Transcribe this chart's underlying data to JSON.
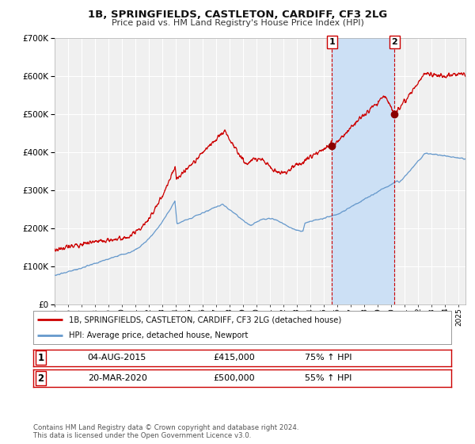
{
  "title": "1B, SPRINGFIELDS, CASTLETON, CARDIFF, CF3 2LG",
  "subtitle": "Price paid vs. HM Land Registry's House Price Index (HPI)",
  "ylim": [
    0,
    700000
  ],
  "yticks": [
    0,
    100000,
    200000,
    300000,
    400000,
    500000,
    600000,
    700000
  ],
  "xlim_start": 1995.0,
  "xlim_end": 2025.5,
  "background_color": "#ffffff",
  "plot_bg_color": "#f0f0f0",
  "grid_color": "#ffffff",
  "red_line_color": "#cc0000",
  "blue_line_color": "#6699cc",
  "shade_color": "#cce0f5",
  "vline_color": "#cc0000",
  "marker1_date": 2015.58,
  "marker1_value": 415000,
  "marker2_date": 2020.22,
  "marker2_value": 500000,
  "legend_label_red": "1B, SPRINGFIELDS, CASTLETON, CARDIFF, CF3 2LG (detached house)",
  "legend_label_blue": "HPI: Average price, detached house, Newport",
  "annotation1_num": "1",
  "annotation1_date_str": "04-AUG-2015",
  "annotation1_price": "£415,000",
  "annotation1_hpi": "75% ↑ HPI",
  "annotation2_num": "2",
  "annotation2_date_str": "20-MAR-2020",
  "annotation2_price": "£500,000",
  "annotation2_hpi": "55% ↑ HPI",
  "footer1": "Contains HM Land Registry data © Crown copyright and database right 2024.",
  "footer2": "This data is licensed under the Open Government Licence v3.0."
}
